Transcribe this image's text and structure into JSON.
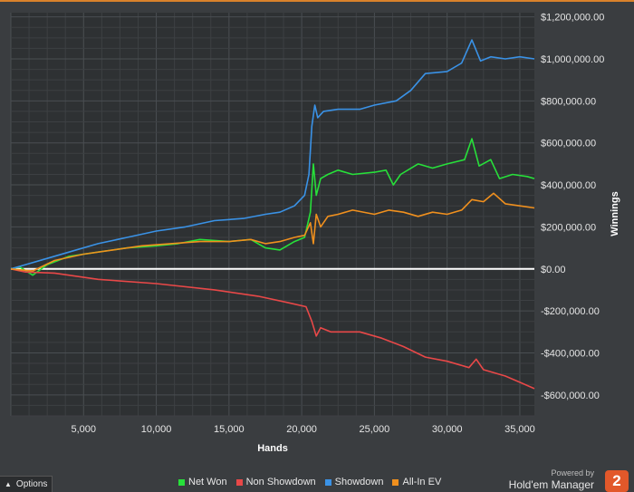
{
  "chart_data": {
    "type": "line",
    "xlabel": "Hands",
    "ylabel": "Winnings",
    "xlim": [
      0,
      36000
    ],
    "ylim": [
      -700000,
      1220000
    ],
    "x_ticks": [
      5000,
      10000,
      15000,
      20000,
      25000,
      30000,
      35000
    ],
    "x_tick_labels": [
      "5,000",
      "10,000",
      "15,000",
      "20,000",
      "25,000",
      "30,000",
      "35,000"
    ],
    "y_ticks": [
      1200000,
      1000000,
      800000,
      600000,
      400000,
      200000,
      0,
      -200000,
      -400000,
      -600000
    ],
    "y_tick_labels": [
      "$1,200,000.00",
      "$1,000,000.00",
      "$800,000.00",
      "$600,000.00",
      "$400,000.00",
      "$200,000.00",
      "$0.00",
      "-$200,000.00",
      "-$400,000.00",
      "-$600,000.00"
    ],
    "grid": true,
    "legend_position": "bottom",
    "series": [
      {
        "name": "Net Won",
        "color": "#27e03a",
        "points": [
          [
            0,
            0
          ],
          [
            600,
            10000
          ],
          [
            1500,
            -30000
          ],
          [
            2500,
            20000
          ],
          [
            4000,
            60000
          ],
          [
            6000,
            80000
          ],
          [
            8000,
            100000
          ],
          [
            10000,
            110000
          ],
          [
            11500,
            120000
          ],
          [
            13000,
            140000
          ],
          [
            15000,
            130000
          ],
          [
            16500,
            140000
          ],
          [
            17500,
            100000
          ],
          [
            18500,
            90000
          ],
          [
            19500,
            130000
          ],
          [
            20200,
            150000
          ],
          [
            20600,
            270000
          ],
          [
            20800,
            500000
          ],
          [
            21000,
            350000
          ],
          [
            21300,
            430000
          ],
          [
            21800,
            450000
          ],
          [
            22500,
            470000
          ],
          [
            23500,
            450000
          ],
          [
            25000,
            460000
          ],
          [
            25800,
            470000
          ],
          [
            26300,
            400000
          ],
          [
            26800,
            450000
          ],
          [
            28000,
            500000
          ],
          [
            29000,
            480000
          ],
          [
            30000,
            500000
          ],
          [
            31200,
            520000
          ],
          [
            31700,
            620000
          ],
          [
            32200,
            490000
          ],
          [
            33000,
            520000
          ],
          [
            33600,
            430000
          ],
          [
            34500,
            450000
          ],
          [
            35500,
            440000
          ],
          [
            36000,
            430000
          ]
        ]
      },
      {
        "name": "Non Showdown",
        "color": "#e84848",
        "points": [
          [
            0,
            0
          ],
          [
            1000,
            -15000
          ],
          [
            3000,
            -20000
          ],
          [
            6000,
            -50000
          ],
          [
            10000,
            -70000
          ],
          [
            14000,
            -100000
          ],
          [
            17000,
            -130000
          ],
          [
            19000,
            -160000
          ],
          [
            20300,
            -180000
          ],
          [
            20700,
            -250000
          ],
          [
            21000,
            -320000
          ],
          [
            21300,
            -280000
          ],
          [
            22000,
            -300000
          ],
          [
            24000,
            -300000
          ],
          [
            25500,
            -330000
          ],
          [
            27000,
            -370000
          ],
          [
            28500,
            -420000
          ],
          [
            30000,
            -440000
          ],
          [
            31500,
            -470000
          ],
          [
            32000,
            -430000
          ],
          [
            32500,
            -480000
          ],
          [
            34000,
            -510000
          ],
          [
            35000,
            -540000
          ],
          [
            36000,
            -570000
          ]
        ]
      },
      {
        "name": "Showdown",
        "color": "#3a92e6",
        "points": [
          [
            0,
            0
          ],
          [
            1000,
            20000
          ],
          [
            2500,
            50000
          ],
          [
            4000,
            80000
          ],
          [
            6000,
            120000
          ],
          [
            8000,
            150000
          ],
          [
            10000,
            180000
          ],
          [
            12000,
            200000
          ],
          [
            14000,
            230000
          ],
          [
            16000,
            240000
          ],
          [
            17500,
            260000
          ],
          [
            18500,
            270000
          ],
          [
            19500,
            300000
          ],
          [
            20200,
            350000
          ],
          [
            20500,
            450000
          ],
          [
            20700,
            680000
          ],
          [
            20900,
            780000
          ],
          [
            21100,
            720000
          ],
          [
            21500,
            750000
          ],
          [
            22500,
            760000
          ],
          [
            24000,
            760000
          ],
          [
            25000,
            780000
          ],
          [
            26500,
            800000
          ],
          [
            27500,
            850000
          ],
          [
            28500,
            930000
          ],
          [
            30000,
            940000
          ],
          [
            31000,
            980000
          ],
          [
            31700,
            1090000
          ],
          [
            32300,
            990000
          ],
          [
            33000,
            1010000
          ],
          [
            34000,
            1000000
          ],
          [
            35000,
            1010000
          ],
          [
            36000,
            1000000
          ]
        ]
      },
      {
        "name": "All-In EV",
        "color": "#f0901e",
        "points": [
          [
            0,
            0
          ],
          [
            1500,
            -10000
          ],
          [
            3000,
            40000
          ],
          [
            5000,
            70000
          ],
          [
            7000,
            90000
          ],
          [
            9000,
            110000
          ],
          [
            11000,
            120000
          ],
          [
            13000,
            130000
          ],
          [
            15000,
            130000
          ],
          [
            16500,
            140000
          ],
          [
            17500,
            120000
          ],
          [
            18500,
            130000
          ],
          [
            19500,
            150000
          ],
          [
            20200,
            160000
          ],
          [
            20600,
            220000
          ],
          [
            20800,
            120000
          ],
          [
            21000,
            260000
          ],
          [
            21300,
            200000
          ],
          [
            21800,
            250000
          ],
          [
            22500,
            260000
          ],
          [
            23500,
            280000
          ],
          [
            25000,
            260000
          ],
          [
            26000,
            280000
          ],
          [
            27000,
            270000
          ],
          [
            28000,
            250000
          ],
          [
            29000,
            270000
          ],
          [
            30000,
            260000
          ],
          [
            31000,
            280000
          ],
          [
            31700,
            330000
          ],
          [
            32500,
            320000
          ],
          [
            33200,
            360000
          ],
          [
            34000,
            310000
          ],
          [
            35000,
            300000
          ],
          [
            36000,
            290000
          ]
        ]
      }
    ]
  },
  "ui": {
    "options_label": "Options",
    "powered_by": "Powered by",
    "brand_name": "Hold'em Manager",
    "brand_badge": "2"
  }
}
